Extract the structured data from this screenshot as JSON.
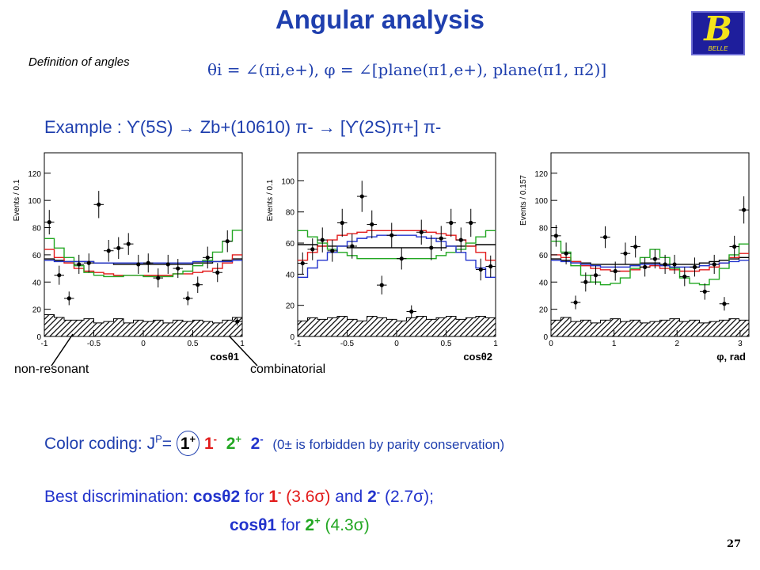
{
  "header": {
    "title": "Angular analysis",
    "definition_label": "Definition of angles",
    "formula": "θi = ∠(πi,e+),  φ = ∠[plane(π1,e+), plane(π1, π2)]",
    "logo_text": "B",
    "logo_subtext": "BELLE"
  },
  "example": {
    "text": "Example :  ϒ(5S) → Zb+(10610) π- → [ϒ(2S)π+] π-"
  },
  "annotations": {
    "non_resonant": "non-resonant",
    "combinatorial": "combinatorial"
  },
  "legend": {
    "prefix": "Color coding: J",
    "sup": "P",
    "eq": "=",
    "items": [
      {
        "label": "1",
        "sup": "+",
        "color": "#000000"
      },
      {
        "label": "1",
        "sup": "-",
        "color": "#e21b1b"
      },
      {
        "label": "2",
        "sup": "+",
        "color": "#22a722"
      },
      {
        "label": "2",
        "sup": "-",
        "color": "#2233cc"
      }
    ],
    "note": "(0± is forbidden by parity conservation)"
  },
  "best": {
    "line1_prefix": "Best discrimination:",
    "cos2": "cosθ2",
    "for1": "for",
    "b1": "1",
    "b1sup": "-",
    "s1": "(3.6σ)",
    "and": "and",
    "b2": "2",
    "b2sup": "-",
    "s2": "(2.7σ);",
    "cos1": "cosθ1",
    "for2": "for",
    "b3": "2",
    "b3sup": "+",
    "s3": "(4.3σ)"
  },
  "page_number": "27",
  "chart_data": [
    {
      "type": "line",
      "ylabel": "Events / 0.1",
      "xlabel": "cosθ1",
      "xlim": [
        -1,
        1
      ],
      "ylim": [
        0,
        135
      ],
      "xticks": [
        -1,
        -0.5,
        0,
        0.5,
        1
      ],
      "xtick_labels": [
        "-1",
        "-0.5",
        "0",
        "0.5",
        "1"
      ],
      "yticks": [
        0,
        20,
        40,
        60,
        80,
        100,
        120
      ],
      "points": {
        "x": [
          -0.95,
          -0.85,
          -0.75,
          -0.65,
          -0.55,
          -0.45,
          -0.35,
          -0.25,
          -0.15,
          -0.05,
          0.05,
          0.15,
          0.25,
          0.35,
          0.45,
          0.55,
          0.65,
          0.75,
          0.85,
          0.95
        ],
        "y": [
          84,
          45,
          28,
          53,
          54,
          97,
          63,
          65,
          68,
          53,
          54,
          43,
          53,
          50,
          28,
          38,
          58,
          47,
          70,
          11
        ],
        "err": [
          9,
          7,
          5,
          7,
          7,
          10,
          8,
          8,
          8,
          7,
          7,
          7,
          7,
          7,
          5,
          6,
          8,
          7,
          8,
          3
        ]
      },
      "background": [
        16,
        14,
        12,
        12,
        13,
        10,
        11,
        13,
        10,
        12,
        11,
        12,
        10,
        12,
        11,
        12,
        11,
        10,
        12,
        14
      ],
      "series": [
        {
          "name": "1+",
          "color": "#000000",
          "values": [
            57,
            56,
            55,
            55,
            55,
            54,
            54,
            53,
            53,
            53,
            53,
            53,
            53,
            53,
            53,
            54,
            54,
            55,
            56,
            57
          ]
        },
        {
          "name": "1-",
          "color": "#e21b1b",
          "values": [
            64,
            58,
            54,
            50,
            48,
            47,
            46,
            45,
            45,
            45,
            45,
            45,
            45,
            46,
            46,
            47,
            48,
            50,
            54,
            60
          ]
        },
        {
          "name": "2+",
          "color": "#22a722",
          "values": [
            72,
            65,
            58,
            52,
            47,
            45,
            44,
            44,
            45,
            45,
            44,
            44,
            44,
            46,
            48,
            52,
            56,
            62,
            70,
            78
          ]
        },
        {
          "name": "2-",
          "color": "#2233cc",
          "values": [
            56,
            55,
            55,
            55,
            55,
            54,
            54,
            54,
            54,
            54,
            54,
            54,
            54,
            54,
            54,
            55,
            55,
            55,
            55,
            56
          ]
        }
      ]
    },
    {
      "type": "line",
      "ylabel": "Events / 0.1",
      "xlabel": "cosθ2",
      "xlim": [
        -1,
        1
      ],
      "ylim": [
        0,
        118
      ],
      "xticks": [
        -1,
        -0.5,
        0,
        0.5,
        1
      ],
      "xtick_labels": [
        "-1",
        "-0.5",
        "0",
        "0.5",
        "1"
      ],
      "yticks": [
        0,
        20,
        40,
        60,
        80,
        100
      ],
      "points": {
        "x": [
          -0.95,
          -0.85,
          -0.75,
          -0.65,
          -0.55,
          -0.45,
          -0.35,
          -0.25,
          -0.15,
          -0.05,
          0.05,
          0.15,
          0.25,
          0.35,
          0.45,
          0.55,
          0.65,
          0.75,
          0.85,
          0.95
        ],
        "y": [
          47,
          56,
          62,
          55,
          73,
          58,
          90,
          72,
          33,
          65,
          50,
          16,
          67,
          57,
          63,
          73,
          62,
          73,
          43,
          45
        ],
        "err": [
          7,
          7,
          8,
          7,
          9,
          8,
          10,
          9,
          6,
          8,
          7,
          4,
          8,
          8,
          8,
          9,
          8,
          9,
          7,
          7
        ]
      },
      "background": [
        10,
        12,
        11,
        12,
        13,
        11,
        10,
        13,
        12,
        11,
        10,
        12,
        13,
        11,
        12,
        13,
        11,
        12,
        13,
        12
      ],
      "series": [
        {
          "name": "1+",
          "color": "#000000",
          "values": [
            59,
            59,
            58,
            58,
            58,
            57,
            57,
            57,
            57,
            57,
            57,
            57,
            57,
            57,
            57,
            58,
            58,
            58,
            59,
            59
          ]
        },
        {
          "name": "1-",
          "color": "#e21b1b",
          "values": [
            49,
            54,
            58,
            62,
            65,
            66,
            67,
            68,
            68,
            68,
            68,
            68,
            68,
            67,
            66,
            65,
            62,
            58,
            54,
            49
          ]
        },
        {
          "name": "2+",
          "color": "#22a722",
          "values": [
            68,
            64,
            60,
            56,
            54,
            52,
            50,
            50,
            50,
            50,
            50,
            50,
            50,
            50,
            52,
            54,
            56,
            60,
            64,
            68
          ]
        },
        {
          "name": "2-",
          "color": "#2233cc",
          "values": [
            38,
            44,
            49,
            54,
            58,
            61,
            63,
            64,
            65,
            65,
            65,
            65,
            64,
            63,
            61,
            58,
            54,
            49,
            44,
            38
          ]
        }
      ]
    },
    {
      "type": "line",
      "ylabel": "Events / 0.157",
      "xlabel": "φ, rad",
      "xlim": [
        0,
        3.14
      ],
      "ylim": [
        0,
        135
      ],
      "xticks": [
        0,
        1,
        2,
        3
      ],
      "xtick_labels": [
        "0",
        "1",
        "2",
        "3"
      ],
      "yticks": [
        0,
        20,
        40,
        60,
        80,
        100,
        120
      ],
      "points": {
        "x": [
          0.08,
          0.24,
          0.39,
          0.55,
          0.71,
          0.86,
          1.02,
          1.18,
          1.34,
          1.49,
          1.65,
          1.81,
          1.96,
          2.12,
          2.28,
          2.44,
          2.59,
          2.75,
          2.91,
          3.06
        ],
        "y": [
          74,
          61,
          25,
          40,
          45,
          73,
          48,
          61,
          66,
          51,
          57,
          53,
          53,
          44,
          51,
          33,
          53,
          24,
          66,
          93
        ],
        "err": [
          8,
          8,
          5,
          7,
          7,
          8,
          7,
          8,
          8,
          7,
          7,
          7,
          7,
          7,
          7,
          6,
          7,
          5,
          8,
          10
        ]
      },
      "background": [
        12,
        14,
        11,
        12,
        10,
        12,
        13,
        11,
        12,
        10,
        11,
        12,
        13,
        11,
        12,
        10,
        11,
        12,
        13,
        12
      ],
      "series": [
        {
          "name": "1+",
          "color": "#000000",
          "values": [
            57,
            56,
            55,
            54,
            53,
            53,
            53,
            53,
            53,
            54,
            54,
            53,
            53,
            53,
            53,
            54,
            55,
            56,
            57,
            58
          ]
        },
        {
          "name": "1-",
          "color": "#e21b1b",
          "values": [
            60,
            58,
            55,
            52,
            50,
            49,
            48,
            48,
            49,
            51,
            52,
            50,
            49,
            48,
            48,
            49,
            51,
            54,
            58,
            61
          ]
        },
        {
          "name": "2+",
          "color": "#22a722",
          "values": [
            70,
            62,
            52,
            45,
            40,
            38,
            39,
            43,
            50,
            58,
            64,
            58,
            50,
            43,
            39,
            38,
            42,
            50,
            60,
            68
          ]
        },
        {
          "name": "2-",
          "color": "#2233cc",
          "values": [
            56,
            55,
            54,
            53,
            52,
            51,
            51,
            51,
            52,
            53,
            53,
            52,
            51,
            51,
            51,
            52,
            53,
            54,
            55,
            56
          ]
        }
      ]
    }
  ]
}
